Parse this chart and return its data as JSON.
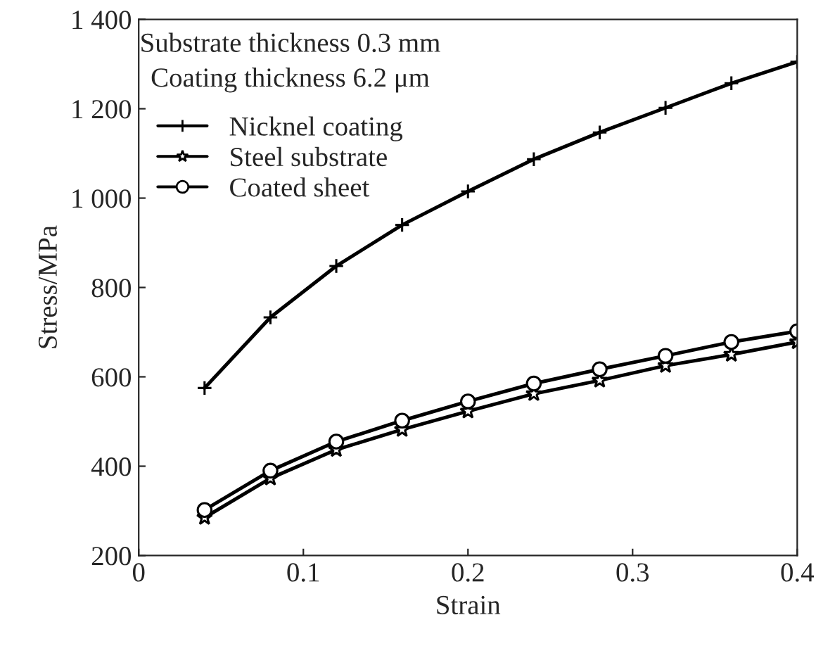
{
  "chart_data": {
    "type": "line",
    "xlabel": "Strain",
    "ylabel": "Stress/MPa",
    "annotations": [
      "Substrate thickness 0.3 mm",
      "Coating thickness 6.2 μm"
    ],
    "x": [
      0.04,
      0.08,
      0.12,
      0.16,
      0.2,
      0.24,
      0.28,
      0.32,
      0.36,
      0.4
    ],
    "series": [
      {
        "name": "Nicknel coating",
        "color": "#000000",
        "marker": "cross",
        "values": [
          575,
          733,
          848,
          940,
          1015,
          1087,
          1147,
          1202,
          1257,
          1305
        ]
      },
      {
        "name": "Steel substrate",
        "color": "#000000",
        "marker": "star",
        "values": [
          285,
          373,
          437,
          482,
          523,
          562,
          592,
          625,
          650,
          678
        ]
      },
      {
        "name": "Coated sheet",
        "color": "#000000",
        "marker": "circle",
        "values": [
          302,
          390,
          455,
          502,
          545,
          585,
          617,
          647,
          678,
          702
        ]
      }
    ],
    "xlim": [
      0,
      0.4
    ],
    "ylim": [
      200,
      1400
    ],
    "xticks": [
      0,
      0.1,
      0.2,
      0.3,
      0.4
    ],
    "yticks": [
      200,
      400,
      600,
      800,
      {
        "value": 1000,
        "label": "1 000"
      },
      {
        "value": 1200,
        "label": "1 200"
      },
      {
        "value": 1400,
        "label": "1 400"
      }
    ],
    "grid": false,
    "legend": "top left",
    "line_style": "solid"
  }
}
